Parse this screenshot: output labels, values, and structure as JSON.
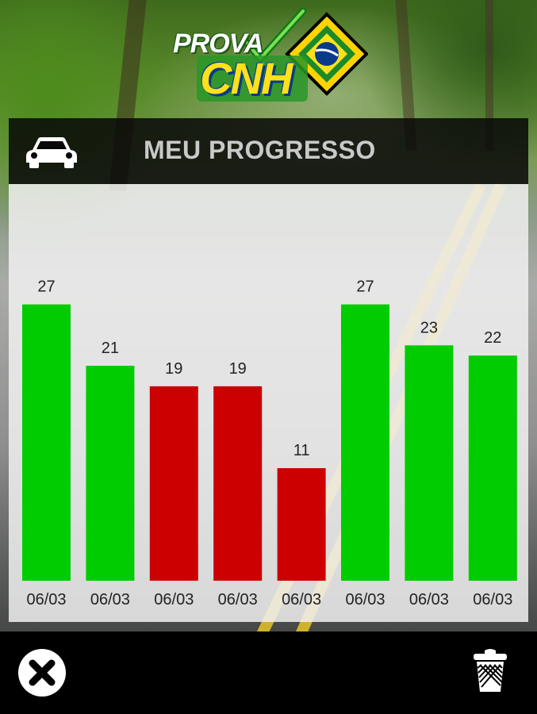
{
  "logo": {
    "word_top": "PROVA",
    "word_bottom": "CNH",
    "flag_icon": "brazil-flag-sign-icon",
    "check_icon": "check-mark-icon"
  },
  "header": {
    "title": "MEU PROGRESSO",
    "icon": "car-icon"
  },
  "footer": {
    "close_icon": "close-x-icon",
    "trash_icon": "trash-icon"
  },
  "colors": {
    "pass": "#00cc00",
    "fail": "#cc0000",
    "header_bg": "#080808",
    "title_text": "#c9c9c9"
  },
  "chart_data": {
    "type": "bar",
    "categories": [
      "06/03",
      "06/03",
      "06/03",
      "06/03",
      "06/03",
      "06/03",
      "06/03",
      "06/03"
    ],
    "values": [
      27,
      21,
      19,
      19,
      11,
      27,
      23,
      22
    ],
    "status": [
      "pass",
      "pass",
      "fail",
      "fail",
      "fail",
      "pass",
      "pass",
      "pass"
    ],
    "ylim": [
      0,
      30
    ],
    "title": "",
    "xlabel": "",
    "ylabel": "",
    "grid": false,
    "legend": "none"
  }
}
